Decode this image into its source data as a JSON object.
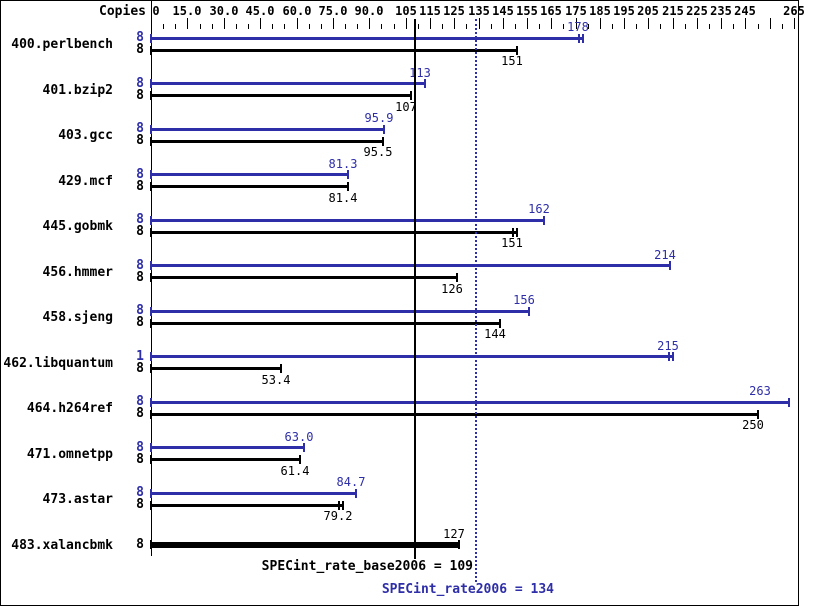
{
  "chart_data": {
    "type": "bar",
    "orientation": "horizontal",
    "copies_header": "Copies",
    "axis": {
      "min": 0,
      "max": 265,
      "minor_step": 5,
      "major_ticks": [
        {
          "value": 0,
          "label": "0"
        },
        {
          "value": 15,
          "label": "15.0"
        },
        {
          "value": 30,
          "label": "30.0"
        },
        {
          "value": 45,
          "label": "45.0"
        },
        {
          "value": 60,
          "label": "60.0"
        },
        {
          "value": 75,
          "label": "75.0"
        },
        {
          "value": 90,
          "label": "90.0"
        },
        {
          "value": 105,
          "label": "105"
        },
        {
          "value": 115,
          "label": "115"
        },
        {
          "value": 125,
          "label": "125"
        },
        {
          "value": 135,
          "label": "135"
        },
        {
          "value": 145,
          "label": "145"
        },
        {
          "value": 155,
          "label": "155"
        },
        {
          "value": 165,
          "label": "165"
        },
        {
          "value": 175,
          "label": "175"
        },
        {
          "value": 185,
          "label": "185"
        },
        {
          "value": 195,
          "label": "195"
        },
        {
          "value": 205,
          "label": "205"
        },
        {
          "value": 215,
          "label": "215"
        },
        {
          "value": 225,
          "label": "225"
        },
        {
          "value": 235,
          "label": "235"
        },
        {
          "value": 245,
          "label": "245"
        },
        {
          "value": 255,
          "label": ""
        },
        {
          "value": 265,
          "label": "265"
        }
      ]
    },
    "colors": {
      "peak": "#2e2ea8",
      "base": "#000000"
    },
    "benchmarks": [
      {
        "name": "400.perlbench",
        "rows": [
          {
            "type": "peak",
            "copies": "8",
            "value": 178,
            "label": "178",
            "double_cap": true
          },
          {
            "type": "base",
            "copies": "8",
            "value": 151,
            "label": "151"
          }
        ]
      },
      {
        "name": "401.bzip2",
        "rows": [
          {
            "type": "peak",
            "copies": "8",
            "value": 113,
            "label": "113"
          },
          {
            "type": "base",
            "copies": "8",
            "value": 107,
            "label": "107"
          }
        ]
      },
      {
        "name": "403.gcc",
        "rows": [
          {
            "type": "peak",
            "copies": "8",
            "value": 95.9,
            "label": "95.9"
          },
          {
            "type": "base",
            "copies": "8",
            "value": 95.5,
            "label": "95.5"
          }
        ]
      },
      {
        "name": "429.mcf",
        "rows": [
          {
            "type": "peak",
            "copies": "8",
            "value": 81.3,
            "label": "81.3"
          },
          {
            "type": "base",
            "copies": "8",
            "value": 81.4,
            "label": "81.4"
          }
        ]
      },
      {
        "name": "445.gobmk",
        "rows": [
          {
            "type": "peak",
            "copies": "8",
            "value": 162,
            "label": "162"
          },
          {
            "type": "base",
            "copies": "8",
            "value": 151,
            "label": "151",
            "double_cap": true
          }
        ]
      },
      {
        "name": "456.hmmer",
        "rows": [
          {
            "type": "peak",
            "copies": "8",
            "value": 214,
            "label": "214"
          },
          {
            "type": "base",
            "copies": "8",
            "value": 126,
            "label": "126"
          }
        ]
      },
      {
        "name": "458.sjeng",
        "rows": [
          {
            "type": "peak",
            "copies": "8",
            "value": 156,
            "label": "156"
          },
          {
            "type": "base",
            "copies": "8",
            "value": 144,
            "label": "144"
          }
        ]
      },
      {
        "name": "462.libquantum",
        "rows": [
          {
            "type": "peak",
            "copies": "1",
            "value": 215,
            "label": "215",
            "double_cap": true
          },
          {
            "type": "base",
            "copies": "8",
            "value": 53.4,
            "label": "53.4"
          }
        ]
      },
      {
        "name": "464.h264ref",
        "rows": [
          {
            "type": "peak",
            "copies": "8",
            "value": 263,
            "label": "263"
          },
          {
            "type": "base",
            "copies": "8",
            "value": 250,
            "label": "250"
          }
        ]
      },
      {
        "name": "471.omnetpp",
        "rows": [
          {
            "type": "peak",
            "copies": "8",
            "value": 63.0,
            "label": "63.0"
          },
          {
            "type": "base",
            "copies": "8",
            "value": 61.4,
            "label": "61.4"
          }
        ]
      },
      {
        "name": "473.astar",
        "rows": [
          {
            "type": "peak",
            "copies": "8",
            "value": 84.7,
            "label": "84.7"
          },
          {
            "type": "base",
            "copies": "8",
            "value": 79.2,
            "label": "79.2",
            "double_cap": true
          }
        ]
      },
      {
        "name": "483.xalancbmk",
        "rows": [
          {
            "type": "base",
            "copies": "8",
            "value": 127,
            "label": "127",
            "thick": true,
            "label_above": true
          }
        ]
      }
    ],
    "reference_lines": [
      {
        "name": "base_mean",
        "style": "solid",
        "color": "#000000",
        "value": 109,
        "label": "SPECint_rate_base2006 = 109"
      },
      {
        "name": "peak_mean",
        "style": "dotted",
        "color": "#2e2ea8",
        "value": 134,
        "label": "SPECint_rate2006 = 134"
      }
    ]
  }
}
